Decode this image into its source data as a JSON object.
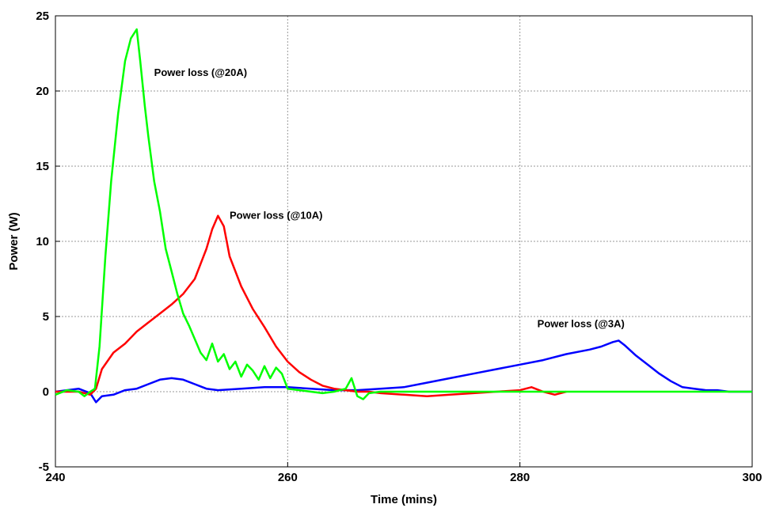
{
  "chart_data": {
    "type": "line",
    "title": "",
    "xlabel": "Time (mins)",
    "ylabel": "Power (W)",
    "xlim": [
      240,
      300
    ],
    "ylim": [
      -5,
      25
    ],
    "xticks": [
      240,
      260,
      280,
      300
    ],
    "yticks": [
      -5,
      0,
      5,
      10,
      15,
      20,
      25
    ],
    "grid": true,
    "legend": "none",
    "annotations": [
      {
        "text": "Power loss (@20A)",
        "x": 248.5,
        "y": 21.0
      },
      {
        "text": "Power loss (@10A)",
        "x": 255.0,
        "y": 11.5
      },
      {
        "text": "Power loss (@3A)",
        "x": 281.5,
        "y": 4.3
      }
    ],
    "series": [
      {
        "color": "#00ff00",
        "x": [
          240,
          241,
          242,
          242.5,
          243,
          243.4,
          243.8,
          244.3,
          244.8,
          245.4,
          246,
          246.5,
          247,
          247.3,
          247.7,
          248,
          248.5,
          249,
          249.5,
          250,
          250.5,
          251,
          251.5,
          252,
          252.5,
          253,
          253.5,
          254,
          254.5,
          255,
          255.5,
          256,
          256.5,
          257,
          257.5,
          258,
          258.5,
          259,
          259.5,
          260,
          261,
          262,
          263,
          264,
          265,
          265.5,
          266,
          266.5,
          267,
          268,
          270,
          280,
          290,
          300
        ],
        "y": [
          -0.2,
          0.1,
          0,
          -0.3,
          0,
          0.2,
          3,
          9,
          14,
          18.5,
          22,
          23.5,
          24.1,
          22,
          19,
          17,
          14,
          12,
          9.5,
          8,
          6.5,
          5.2,
          4.4,
          3.5,
          2.6,
          2.1,
          3.2,
          2.0,
          2.5,
          1.5,
          2.0,
          1.0,
          1.8,
          1.4,
          0.8,
          1.7,
          0.9,
          1.6,
          1.2,
          0.2,
          0.1,
          0,
          -0.1,
          0,
          0.2,
          0.9,
          -0.3,
          -0.5,
          -0.1,
          0,
          0,
          0,
          0,
          0
        ]
      },
      {
        "color": "#ff0000",
        "x": [
          240,
          242,
          243,
          243.5,
          244,
          245,
          246,
          247,
          248,
          249,
          250,
          251,
          252,
          253,
          253.5,
          254,
          254.5,
          255,
          256,
          257,
          258,
          259,
          260,
          261,
          262,
          263,
          264,
          265,
          266,
          267,
          268,
          270,
          272,
          274,
          276,
          278,
          280,
          281,
          282,
          283,
          284
        ],
        "y": [
          0,
          0,
          -0.2,
          0.2,
          1.5,
          2.6,
          3.2,
          4.0,
          4.6,
          5.2,
          5.8,
          6.5,
          7.5,
          9.5,
          10.8,
          11.7,
          11.0,
          9.0,
          7.0,
          5.5,
          4.3,
          3.0,
          2.0,
          1.3,
          0.8,
          0.4,
          0.2,
          0.1,
          0,
          0,
          -0.1,
          -0.2,
          -0.3,
          -0.2,
          -0.1,
          0,
          0.1,
          0.3,
          0,
          -0.2,
          0
        ]
      },
      {
        "color": "#0000ff",
        "x": [
          240,
          242,
          243,
          243.5,
          244,
          245,
          246,
          247,
          248,
          249,
          250,
          251,
          252,
          253,
          254,
          256,
          258,
          260,
          262,
          264,
          266,
          268,
          270,
          272,
          274,
          276,
          278,
          280,
          282,
          284,
          286,
          287,
          288,
          288.5,
          289,
          290,
          291,
          292,
          293,
          294,
          295,
          296,
          297,
          298,
          299,
          300
        ],
        "y": [
          0,
          0.2,
          -0.1,
          -0.7,
          -0.3,
          -0.2,
          0.1,
          0.2,
          0.5,
          0.8,
          0.9,
          0.8,
          0.5,
          0.2,
          0.1,
          0.2,
          0.3,
          0.3,
          0.2,
          0.1,
          0.1,
          0.2,
          0.3,
          0.6,
          0.9,
          1.2,
          1.5,
          1.8,
          2.1,
          2.5,
          2.8,
          3.0,
          3.3,
          3.4,
          3.1,
          2.4,
          1.8,
          1.2,
          0.7,
          0.3,
          0.2,
          0.1,
          0.1,
          0,
          0,
          0
        ]
      }
    ]
  }
}
